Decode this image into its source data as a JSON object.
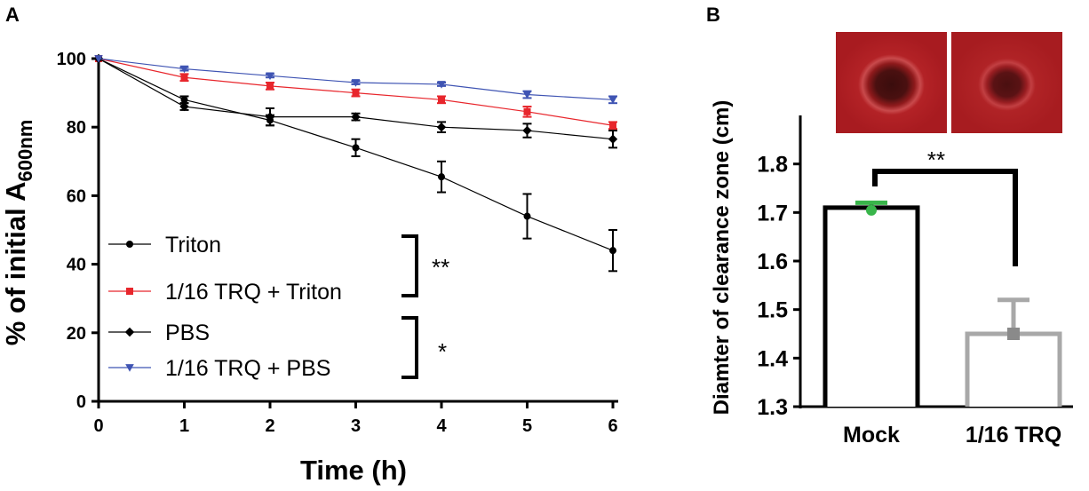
{
  "chart_data": [
    {
      "type": "line",
      "panel_label": "A",
      "xlabel": "Time (h)",
      "ylabel_main": "% of initial A",
      "ylabel_sub": "600nm",
      "xlim": [
        0,
        6
      ],
      "ylim": [
        0,
        100
      ],
      "x_ticks": [
        "0",
        "1",
        "2",
        "3",
        "4",
        "5",
        "6"
      ],
      "y_ticks": [
        "0",
        "20",
        "40",
        "60",
        "80",
        "100"
      ],
      "x": [
        0,
        1,
        2,
        3,
        4,
        5,
        6
      ],
      "series": [
        {
          "name": "Triton",
          "marker": "circle",
          "color": "#000000",
          "values": [
            100,
            88,
            82,
            74,
            65.5,
            54,
            44
          ],
          "errors": [
            0,
            1,
            1.5,
            2.5,
            4.5,
            6.5,
            6
          ]
        },
        {
          "name": "1/16 TRQ + Triton",
          "marker": "square",
          "color": "#e8262c",
          "values": [
            100,
            94.5,
            92,
            90,
            88,
            84.5,
            80.5
          ],
          "errors": [
            0,
            1,
            1,
            1,
            1,
            1.5,
            1
          ]
        },
        {
          "name": "PBS",
          "marker": "diamond",
          "color": "#000000",
          "values": [
            100,
            86,
            83,
            83,
            80,
            79,
            76.5
          ],
          "errors": [
            0,
            1,
            2.5,
            1,
            1.5,
            2,
            2.5
          ]
        },
        {
          "name": "1/16 TRQ + PBS",
          "marker": "triangle-down",
          "color": "#3f54b3",
          "values": [
            100,
            97,
            95,
            93,
            92.5,
            89.5,
            88
          ],
          "errors": [
            0,
            0.5,
            0.5,
            0.5,
            0.5,
            1,
            1
          ]
        }
      ],
      "legend_placement": "bottom-left",
      "annotations": [
        "**",
        "*"
      ]
    },
    {
      "type": "bar",
      "panel_label": "B",
      "ylabel": "Diamter of clearance zone (cm)",
      "ylim": [
        1.3,
        1.9
      ],
      "y_ticks": [
        "1.3",
        "1.4",
        "1.5",
        "1.6",
        "1.7",
        "1.8"
      ],
      "categories": [
        "Mock",
        "1/16 TRQ"
      ],
      "values": [
        1.71,
        1.45
      ],
      "errors": [
        0.01,
        0.07
      ],
      "bar_colors": [
        "#000000",
        "#a8a8a8"
      ],
      "point_colors": [
        "#39b54a",
        "#8a8a8a"
      ],
      "annotations": [
        "**"
      ],
      "inset_images": [
        "plate-mock",
        "plate-1/16-trq"
      ]
    }
  ]
}
